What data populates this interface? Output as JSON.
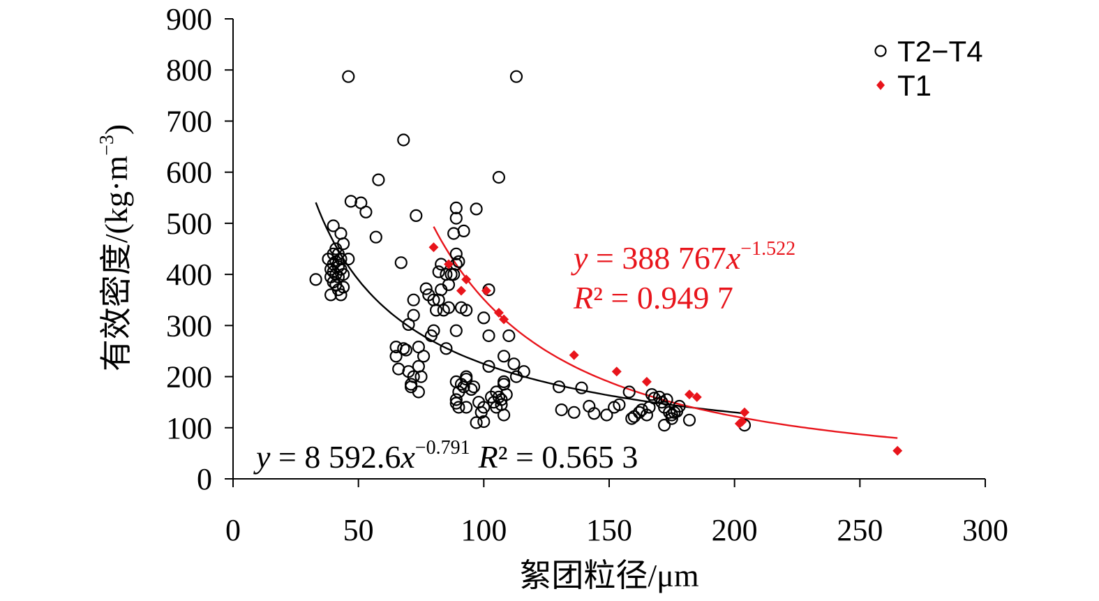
{
  "chart_data": {
    "type": "scatter",
    "xlabel_main": "絮团粒径",
    "xlabel_unit": "/μm",
    "ylabel_main": "有效密度",
    "ylabel_unit_pre": "/(kg·m",
    "ylabel_unit_sup": "−3",
    "ylabel_unit_post": ")",
    "xlim": [
      0,
      300
    ],
    "ylim": [
      0,
      900
    ],
    "x_ticks": [
      "0",
      "50",
      "100",
      "150",
      "200",
      "250",
      "300"
    ],
    "y_ticks": [
      "0",
      "100",
      "200",
      "300",
      "400",
      "500",
      "600",
      "700",
      "800",
      "900"
    ],
    "legend_position": "top-right",
    "colors": {
      "T2T4": "#000000",
      "T1": "#e8141b"
    },
    "series": [
      {
        "name": "T2−T4",
        "marker": "open-circle",
        "points": [
          [
            33,
            390
          ],
          [
            38,
            430
          ],
          [
            39,
            410
          ],
          [
            39,
            395
          ],
          [
            39,
            360
          ],
          [
            40,
            495
          ],
          [
            40,
            440
          ],
          [
            40,
            420
          ],
          [
            40,
            405
          ],
          [
            40,
            385
          ],
          [
            41,
            450
          ],
          [
            41,
            425
          ],
          [
            41,
            400
          ],
          [
            41,
            380
          ],
          [
            42,
            440
          ],
          [
            42,
            415
          ],
          [
            42,
            395
          ],
          [
            42,
            370
          ],
          [
            43,
            480
          ],
          [
            43,
            430
          ],
          [
            43,
            410
          ],
          [
            43,
            360
          ],
          [
            44,
            460
          ],
          [
            44,
            400
          ],
          [
            44,
            375
          ],
          [
            46,
            430
          ],
          [
            46,
            787
          ],
          [
            47,
            543
          ],
          [
            51,
            540
          ],
          [
            53,
            522
          ],
          [
            57,
            473
          ],
          [
            58,
            585
          ],
          [
            67,
            423
          ],
          [
            68,
            663
          ],
          [
            65,
            258
          ],
          [
            65,
            240
          ],
          [
            66,
            215
          ],
          [
            68,
            255
          ],
          [
            69,
            252
          ],
          [
            70,
            302
          ],
          [
            70,
            210
          ],
          [
            71,
            185
          ],
          [
            71,
            180
          ],
          [
            72,
            350
          ],
          [
            72,
            320
          ],
          [
            72,
            200
          ],
          [
            73,
            515
          ],
          [
            74,
            258
          ],
          [
            74,
            220
          ],
          [
            74,
            170
          ],
          [
            75,
            200
          ],
          [
            76,
            240
          ],
          [
            77,
            372
          ],
          [
            78,
            360
          ],
          [
            79,
            280
          ],
          [
            80,
            290
          ],
          [
            80,
            350
          ],
          [
            81,
            330
          ],
          [
            82,
            405
          ],
          [
            82,
            350
          ],
          [
            83,
            370
          ],
          [
            83,
            420
          ],
          [
            84,
            330
          ],
          [
            85,
            255
          ],
          [
            85,
            400
          ],
          [
            86,
            380
          ],
          [
            86,
            335
          ],
          [
            87,
            400
          ],
          [
            88,
            400
          ],
          [
            88,
            480
          ],
          [
            89,
            440
          ],
          [
            89,
            420
          ],
          [
            89,
            290
          ],
          [
            89,
            530
          ],
          [
            89,
            510
          ],
          [
            89,
            190
          ],
          [
            89,
            155
          ],
          [
            89,
            148
          ],
          [
            90,
            425
          ],
          [
            90,
            170
          ],
          [
            90,
            140
          ],
          [
            91,
            335
          ],
          [
            91,
            185
          ],
          [
            92,
            485
          ],
          [
            92,
            180
          ],
          [
            93,
            330
          ],
          [
            93,
            200
          ],
          [
            93,
            195
          ],
          [
            93,
            140
          ],
          [
            95,
            175
          ],
          [
            96,
            180
          ],
          [
            97,
            528
          ],
          [
            97,
            110
          ],
          [
            98,
            150
          ],
          [
            99,
            130
          ],
          [
            100,
            315
          ],
          [
            100,
            140
          ],
          [
            100,
            112
          ],
          [
            102,
            370
          ],
          [
            102,
            280
          ],
          [
            102,
            220
          ],
          [
            103,
            160
          ],
          [
            104,
            150
          ],
          [
            105,
            170
          ],
          [
            105,
            140
          ],
          [
            106,
            590
          ],
          [
            106,
            160
          ],
          [
            107,
            155
          ],
          [
            107,
            145
          ],
          [
            108,
            240
          ],
          [
            108,
            190
          ],
          [
            108,
            185
          ],
          [
            108,
            125
          ],
          [
            109,
            165
          ],
          [
            110,
            280
          ],
          [
            112,
            225
          ],
          [
            113,
            200
          ],
          [
            113,
            787
          ],
          [
            116,
            210
          ],
          [
            130,
            180
          ],
          [
            131,
            135
          ],
          [
            136,
            130
          ],
          [
            139,
            178
          ],
          [
            142,
            142
          ],
          [
            144,
            128
          ],
          [
            149,
            125
          ],
          [
            152,
            140
          ],
          [
            154,
            145
          ],
          [
            158,
            170
          ],
          [
            159,
            118
          ],
          [
            160,
            122
          ],
          [
            162,
            130
          ],
          [
            163,
            135
          ],
          [
            165,
            125
          ],
          [
            166,
            140
          ],
          [
            167,
            165
          ],
          [
            168,
            158
          ],
          [
            170,
            160
          ],
          [
            171,
            150
          ],
          [
            172,
            140
          ],
          [
            172,
            105
          ],
          [
            173,
            155
          ],
          [
            174,
            130
          ],
          [
            175,
            118
          ],
          [
            175,
            125
          ],
          [
            176,
            130
          ],
          [
            177,
            132
          ],
          [
            178,
            142
          ],
          [
            182,
            115
          ],
          [
            204,
            105
          ]
        ]
      },
      {
        "name": "T1",
        "marker": "filled-diamond",
        "points": [
          [
            80,
            453
          ],
          [
            86,
            420
          ],
          [
            93,
            390
          ],
          [
            91,
            368
          ],
          [
            101,
            368
          ],
          [
            106,
            325
          ],
          [
            108,
            312
          ],
          [
            136,
            242
          ],
          [
            153,
            210
          ],
          [
            165,
            190
          ],
          [
            182,
            165
          ],
          [
            185,
            160
          ],
          [
            202,
            108
          ],
          [
            203,
            112
          ],
          [
            204,
            130
          ],
          [
            265,
            55
          ]
        ]
      }
    ],
    "fits": [
      {
        "series": "T2−T4",
        "coefficient": 8592.6,
        "exponent": -0.791,
        "x_range": [
          33,
          204
        ],
        "eq_y": "y",
        "eq_eq": " = 8 592.6",
        "eq_x": "x",
        "eq_exp": "−0.791",
        "eq_r": "R",
        "eq_r_rest": "² = 0.565 3"
      },
      {
        "series": "T1",
        "coefficient": 388767,
        "exponent": -1.522,
        "x_range": [
          80,
          265
        ],
        "eq_y": "y",
        "eq_eq": " = 388 767",
        "eq_x": "x",
        "eq_exp": "−1.522",
        "eq_r": "R",
        "eq_r_rest": "² = 0.949 7"
      }
    ]
  }
}
